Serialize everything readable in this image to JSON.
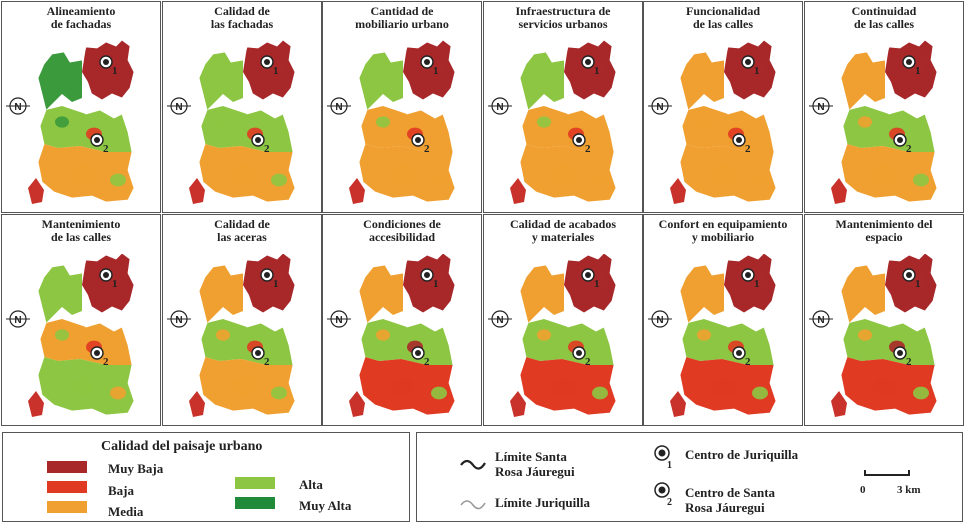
{
  "panels": [
    {
      "title": "Alineamiento\nde fachadas",
      "palette": [
        "#3a9a3c",
        "#8dc643",
        "#f0a030",
        "#e03a22",
        "#a8282a"
      ]
    },
    {
      "title": "Calidad de\nlas fachadas",
      "palette": [
        "#8dc643",
        "#8dc643",
        "#f0a030",
        "#e03a22",
        "#a8282a"
      ]
    },
    {
      "title": "Cantidad de\nmobiliario urbano",
      "palette": [
        "#8dc643",
        "#f0a030",
        "#f0a030",
        "#e03a22",
        "#a8282a"
      ]
    },
    {
      "title": "Infraestructura de\nservicios urbanos",
      "palette": [
        "#8dc643",
        "#f0a030",
        "#f0a030",
        "#e03a22",
        "#a8282a"
      ]
    },
    {
      "title": "Funcionalidad\nde las calles",
      "palette": [
        "#f0a030",
        "#f0a030",
        "#f0a030",
        "#e03a22",
        "#a8282a"
      ]
    },
    {
      "title": "Continuidad\nde las calles",
      "palette": [
        "#f0a030",
        "#8dc643",
        "#f0a030",
        "#e03a22",
        "#a8282a"
      ]
    },
    {
      "title": "Mantenimiento\nde las calles",
      "palette": [
        "#8dc643",
        "#f0a030",
        "#8dc643",
        "#e03a22",
        "#a8282a"
      ]
    },
    {
      "title": "Calidad de\nlas aceras",
      "palette": [
        "#f0a030",
        "#8dc643",
        "#f0a030",
        "#e03a22",
        "#a8282a"
      ]
    },
    {
      "title": "Condiciones de\naccesibilidad",
      "palette": [
        "#f0a030",
        "#8dc643",
        "#e03a22",
        "#a8282a",
        "#a8282a"
      ]
    },
    {
      "title": "Calidad de acabados\ny materiales",
      "palette": [
        "#f0a030",
        "#8dc643",
        "#e03a22",
        "#e03a22",
        "#a8282a"
      ]
    },
    {
      "title": "Confort en equipamiento\ny mobiliario",
      "palette": [
        "#f0a030",
        "#8dc643",
        "#e03a22",
        "#e03a22",
        "#a8282a"
      ]
    },
    {
      "title": "Mantenimiento del\nespacio",
      "palette": [
        "#f0a030",
        "#8dc643",
        "#e03a22",
        "#a8282a",
        "#a8282a"
      ]
    }
  ],
  "north_symbol": "N",
  "center_labels": {
    "juriquilla": "1",
    "santa_rosa": "2"
  },
  "legend": {
    "title": "Calidad del paisaje urbano",
    "classes": [
      {
        "label": "Muy Baja",
        "color": "#a8282a"
      },
      {
        "label": "Baja",
        "color": "#e03a22"
      },
      {
        "label": "Media",
        "color": "#f0a030"
      },
      {
        "label": "Alta",
        "color": "#8dc643"
      },
      {
        "label": "Muy Alta",
        "color": "#1e8a3a"
      }
    ],
    "limit_santa_rosa": "Límite Santa\nRosa Jáuregui",
    "limit_juriquilla": "Límite Juriquilla",
    "center_juriquilla": "Centro de Juriquilla",
    "center_santa_rosa": "Centro de Santa\nRosa Jáuregui",
    "scale_zero": "0",
    "scale_end": "3 km"
  }
}
